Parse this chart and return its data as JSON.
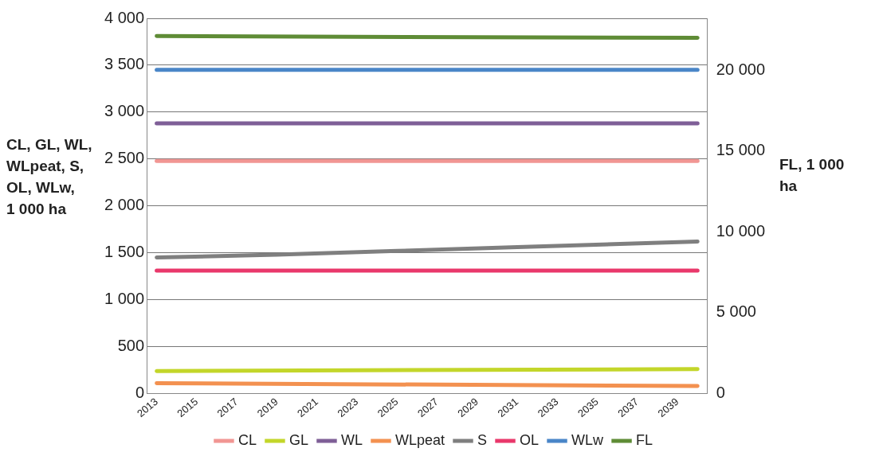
{
  "chart_data": {
    "type": "line",
    "ylabel": "CL, GL, WL, WLpeat, S, OL, WLw, 1 000 ha",
    "y2label": "FL, 1 000 ha",
    "xlim": [
      2012.5,
      2040.5
    ],
    "xticks": [
      2013,
      2015,
      2017,
      2019,
      2021,
      2023,
      2025,
      2027,
      2029,
      2031,
      2033,
      2035,
      2037,
      2039
    ],
    "ylim": [
      0,
      4000
    ],
    "yticks": [
      {
        "value": 0,
        "label": "0"
      },
      {
        "value": 500,
        "label": "500"
      },
      {
        "value": 1000,
        "label": "1 000"
      },
      {
        "value": 1500,
        "label": "1 500"
      },
      {
        "value": 2000,
        "label": "2 000"
      },
      {
        "value": 2500,
        "label": "2 500"
      },
      {
        "value": 3000,
        "label": "3 000"
      },
      {
        "value": 3500,
        "label": "3 500"
      },
      {
        "value": 4000,
        "label": "4 000"
      }
    ],
    "y2lim": [
      0,
      23200
    ],
    "y2ticks": [
      {
        "value": 0,
        "label": "0"
      },
      {
        "value": 5000,
        "label": "5 000"
      },
      {
        "value": 10000,
        "label": "10 000"
      },
      {
        "value": 15000,
        "label": "15 000"
      },
      {
        "value": 20000,
        "label": "20 000"
      }
    ],
    "grid": "y",
    "legend": "bottom",
    "marker": "none",
    "line_style": "solid",
    "series": [
      {
        "name": "CL",
        "color": "#f19693",
        "x": [
          2013,
          2040
        ],
        "values": [
          2480,
          2480
        ]
      },
      {
        "name": "GL",
        "color": "#c3d62a",
        "x": [
          2013,
          2040
        ],
        "values": [
          240,
          260
        ]
      },
      {
        "name": "WL",
        "color": "#7f5f97",
        "x": [
          2013,
          2040
        ],
        "values": [
          2880,
          2880
        ]
      },
      {
        "name": "WLpeat",
        "color": "#f39150",
        "x": [
          2013,
          2040
        ],
        "values": [
          110,
          80
        ]
      },
      {
        "name": "S",
        "color": "#7f7f7f",
        "x": [
          2013,
          2019,
          2025,
          2031,
          2040
        ],
        "values": [
          1450,
          1480,
          1520,
          1560,
          1620
        ]
      },
      {
        "name": "OL",
        "color": "#e9386b",
        "x": [
          2013,
          2040
        ],
        "values": [
          1310,
          1310
        ]
      },
      {
        "name": "WLw",
        "color": "#4a86c8",
        "x": [
          2013,
          2040
        ],
        "values": [
          3450,
          3450
        ]
      },
      {
        "name": "FL",
        "color": "#5f8c36",
        "axis": "y2",
        "x": [
          2013,
          2040
        ],
        "values": [
          22100,
          21990
        ]
      }
    ]
  }
}
